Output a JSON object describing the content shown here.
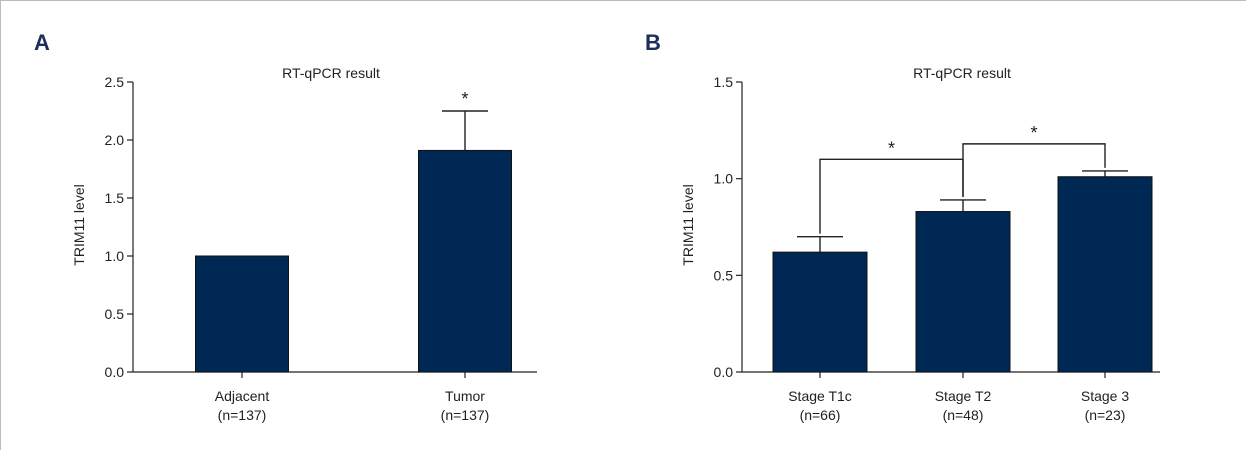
{
  "figure": {
    "bar_color": "#002855",
    "panels": [
      {
        "letter": "A",
        "title": "RT-qPCR result",
        "ylabel": "TRIM11 level"
      },
      {
        "letter": "B",
        "title": "RT-qPCR result",
        "ylabel": "TRIM11 level"
      }
    ]
  },
  "chart_data": [
    {
      "type": "bar",
      "title": "RT-qPCR result",
      "xlabel": "",
      "ylabel": "TRIM11 level",
      "ylim": [
        0,
        2.5
      ],
      "yticks": [
        "0.0",
        "0.5",
        "1.0",
        "1.5",
        "2.0",
        "2.5"
      ],
      "categories": [
        "Adjacent",
        "Tumor"
      ],
      "category_sublabels": [
        "(n=137)",
        "(n=137)"
      ],
      "values": [
        1.0,
        1.91
      ],
      "errors": [
        0,
        0.34
      ],
      "significance": [
        {
          "type": "single",
          "bar": 1,
          "label": "*"
        }
      ],
      "legend": "none",
      "grid": false
    },
    {
      "type": "bar",
      "title": "RT-qPCR result",
      "xlabel": "",
      "ylabel": "TRIM11 level",
      "ylim": [
        0,
        1.5
      ],
      "yticks": [
        "0.0",
        "0.5",
        "1.0",
        "1.5"
      ],
      "categories": [
        "Stage T1c",
        "Stage T2",
        "Stage 3"
      ],
      "category_sublabels": [
        "(n=66)",
        "(n=48)",
        "(n=23)"
      ],
      "values": [
        0.62,
        0.83,
        1.01
      ],
      "errors": [
        0.08,
        0.06,
        0.03
      ],
      "significance": [
        {
          "type": "bracket",
          "from": 0,
          "to": 1,
          "level": 1.1,
          "label": "*"
        },
        {
          "type": "bracket",
          "from": 1,
          "to": 2,
          "level": 1.18,
          "label": "*"
        }
      ],
      "legend": "none",
      "grid": false
    }
  ]
}
